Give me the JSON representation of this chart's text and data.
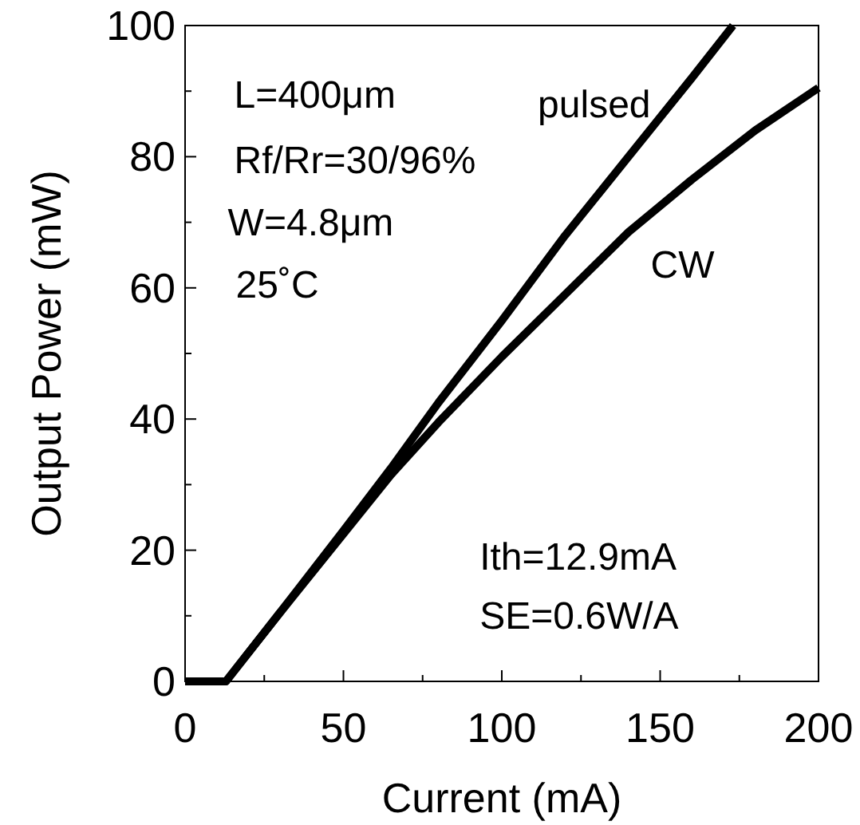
{
  "chart_data": {
    "type": "line",
    "xlabel": "Current (mA)",
    "ylabel": "Output Power (mW)",
    "xlim": [
      0,
      200
    ],
    "ylim": [
      0,
      100
    ],
    "xticks": [
      0,
      {
        "value": 25,
        "label": null
      },
      50,
      {
        "value": 75,
        "label": null
      },
      100,
      {
        "value": 125,
        "label": null
      },
      150,
      {
        "value": 175,
        "label": null
      },
      200
    ],
    "yticks": [
      0,
      {
        "value": 10,
        "label": null
      },
      20,
      {
        "value": 30,
        "label": null
      },
      40,
      {
        "value": 50,
        "label": null
      },
      60,
      {
        "value": 70,
        "label": null
      },
      80,
      {
        "value": 90,
        "label": null
      },
      100
    ],
    "grid": false,
    "legend": false,
    "line_style": "solid",
    "series": [
      {
        "name": "pulsed",
        "color": "#000000",
        "x": [
          0,
          12.9,
          30,
          50,
          65,
          80,
          100,
          120,
          140,
          160,
          173
        ],
        "values": [
          0,
          0,
          10.5,
          23,
          32.5,
          42.5,
          55,
          68,
          80,
          92,
          100
        ]
      },
      {
        "name": "CW",
        "color": "#000000",
        "x": [
          0,
          12.9,
          30,
          50,
          65,
          80,
          100,
          120,
          140,
          160,
          180,
          200
        ],
        "values": [
          0,
          0,
          10.5,
          22.5,
          31.5,
          39.5,
          49.5,
          59,
          68.5,
          76.5,
          84,
          90.5
        ]
      }
    ],
    "annotations": [
      "L=400μm",
      "Rf/Rr=30/96%",
      "W=4.8μm",
      "25˚C",
      "Ith=12.9mA",
      "SE=0.6W/A"
    ]
  }
}
